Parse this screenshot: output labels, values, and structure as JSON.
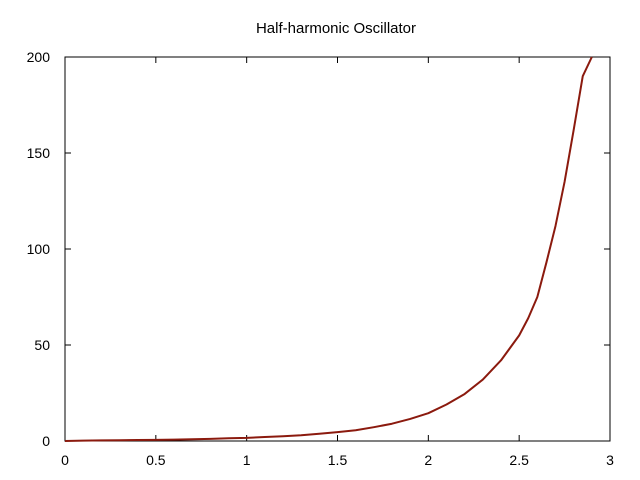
{
  "chart_data": {
    "type": "line",
    "title": "Half-harmonic Oscillator",
    "xlabel": "",
    "ylabel": "",
    "xlim": [
      0,
      3
    ],
    "ylim": [
      0,
      200
    ],
    "x_ticks": [
      0,
      0.5,
      1,
      1.5,
      2,
      2.5,
      3
    ],
    "x_tick_labels": [
      "0",
      "0.5",
      "1",
      "1.5",
      "2",
      "2.5",
      "3"
    ],
    "y_ticks": [
      0,
      50,
      100,
      150,
      200
    ],
    "y_tick_labels": [
      "0",
      "50",
      "100",
      "150",
      "200"
    ],
    "grid": false,
    "line_color": "#8b1a0e",
    "series": [
      {
        "x": [
          0,
          0.1,
          0.2,
          0.3,
          0.4,
          0.5,
          0.6,
          0.7,
          0.8,
          0.9,
          1.0,
          1.1,
          1.2,
          1.3,
          1.4,
          1.5,
          1.6,
          1.7,
          1.8,
          1.9,
          2.0,
          2.1,
          2.2,
          2.3,
          2.4,
          2.5,
          2.55,
          2.6,
          2.65,
          2.7,
          2.75,
          2.8,
          2.85,
          2.9
        ],
        "y": [
          0,
          0.2,
          0.3,
          0.4,
          0.5,
          0.6,
          0.7,
          0.9,
          1.1,
          1.4,
          1.6,
          2.1,
          2.5,
          3.0,
          3.8,
          4.6,
          5.6,
          7.2,
          9.0,
          11.5,
          14.5,
          19.0,
          24.5,
          32.0,
          42.0,
          55.0,
          64.0,
          75.0,
          93.0,
          112.0,
          135.0,
          162.0,
          190.0,
          200.0
        ]
      }
    ]
  }
}
